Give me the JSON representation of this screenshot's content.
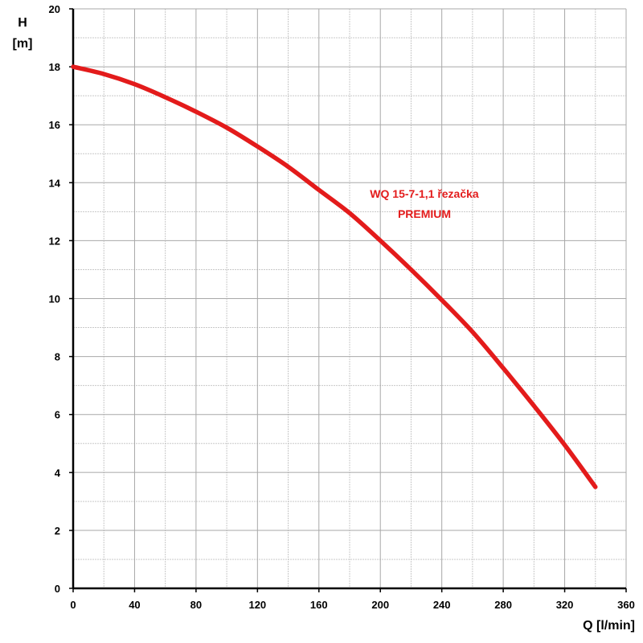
{
  "chart_data": {
    "type": "line",
    "title": "",
    "xlabel": "Q [l/min]",
    "ylabel_line1": "H",
    "ylabel_line2": "[m]",
    "xlim": [
      0,
      360
    ],
    "ylim": [
      0,
      20
    ],
    "x_ticks": [
      0,
      40,
      80,
      120,
      160,
      200,
      240,
      280,
      320,
      360
    ],
    "y_ticks": [
      0,
      2,
      4,
      6,
      8,
      10,
      12,
      14,
      16,
      18,
      20
    ],
    "x_minor_step": 20,
    "y_minor_step": 1,
    "grid": true,
    "series": [
      {
        "name": "WQ 15-7-1,1 řezačka PREMIUM",
        "label_line1": "WQ 15-7-1,1 řezačka",
        "label_line2": "PREMIUM",
        "color": "#e31b1b",
        "x": [
          0,
          20,
          40,
          60,
          80,
          100,
          120,
          140,
          160,
          180,
          200,
          220,
          240,
          260,
          280,
          300,
          320,
          340
        ],
        "y": [
          18.0,
          17.75,
          17.4,
          16.95,
          16.45,
          15.9,
          15.25,
          14.55,
          13.75,
          12.95,
          12.0,
          11.0,
          9.95,
          8.85,
          7.6,
          6.3,
          4.95,
          3.5
        ]
      }
    ]
  }
}
